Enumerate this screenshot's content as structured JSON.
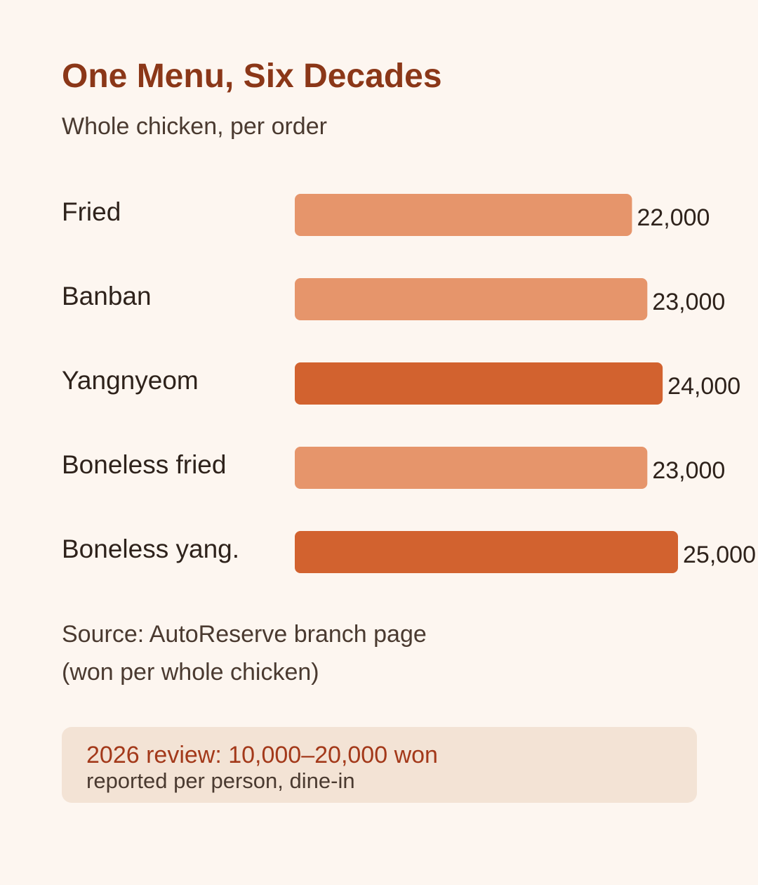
{
  "header": {
    "title": "One Menu, Six Decades",
    "subtitle": "Whole chicken, per order"
  },
  "chart_data": {
    "type": "bar",
    "orientation": "horizontal",
    "categories": [
      "Fried",
      "Banban",
      "Yangnyeom",
      "Boneless fried",
      "Boneless yang."
    ],
    "values": [
      22000,
      23000,
      24000,
      23000,
      25000
    ],
    "value_labels": [
      "22,000",
      "23,000",
      "24,000",
      "23,000",
      "25,000"
    ],
    "highlighted": [
      false,
      false,
      true,
      false,
      true
    ],
    "xlim": [
      0,
      25000
    ],
    "colors": {
      "default": "#e6956b",
      "highlight": "#d2622f"
    },
    "title": "One Menu, Six Decades",
    "subtitle": "Whole chicken, per order",
    "xlabel": "",
    "ylabel": "",
    "grid": false,
    "legend": "none"
  },
  "source": {
    "line1": "Source: AutoReserve branch page",
    "line2": "(won per whole chicken)"
  },
  "note": {
    "headline": "2026 review: 10,000–20,000 won",
    "detail": "reported per person, dine-in"
  },
  "colors": {
    "background": "#fdf6f0",
    "title": "#8b3718",
    "text": "#4a3a30",
    "note_background": "#f3e3d5",
    "note_accent": "#a3391a"
  }
}
